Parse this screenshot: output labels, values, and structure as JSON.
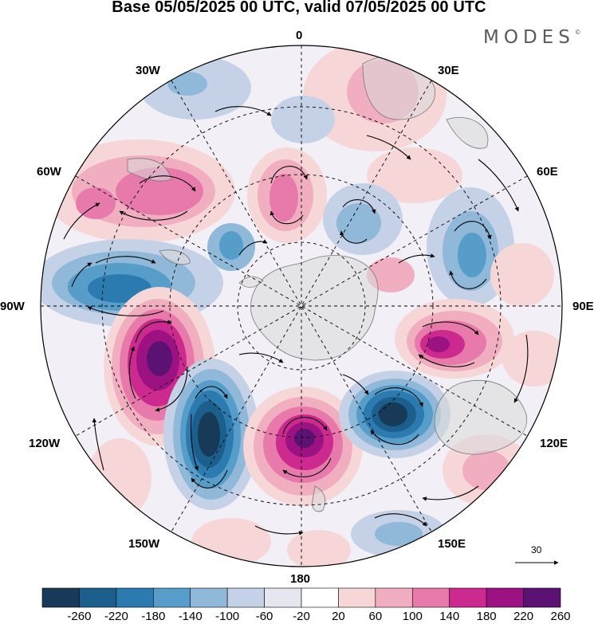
{
  "title": "Base 05/05/2025 00 UTC, valid 07/05/2025 00 UTC",
  "brand": "MODES",
  "brand_mark": "©",
  "longitude_labels": {
    "top": "0",
    "bottom": "180",
    "left": "90W",
    "right": "90E",
    "nw_upper": "30W",
    "nw_lower": "60W",
    "ne_upper": "30E",
    "ne_lower": "60E",
    "sw_upper": "120W",
    "sw_lower": "150W",
    "se_upper": "120E",
    "se_lower": "150E"
  },
  "reference_vector": {
    "label": "30"
  },
  "colorbar": {
    "ticks": [
      "-260",
      "-220",
      "-180",
      "-140",
      "-100",
      "-60",
      "-20",
      "20",
      "60",
      "100",
      "140",
      "180",
      "220",
      "260"
    ],
    "colors": [
      "#163a57",
      "#1c5f8c",
      "#2b7bb0",
      "#569dca",
      "#8fb8d9",
      "#c4d1e6",
      "#e6e6f1",
      "#ffffff",
      "#f7d6d8",
      "#f1aec0",
      "#e77aaa",
      "#cc2a8e",
      "#9d1283",
      "#5c1272"
    ]
  },
  "map_colors": {
    "land": "#d9d9d9",
    "coast": "#777777",
    "grid": "#000000"
  }
}
